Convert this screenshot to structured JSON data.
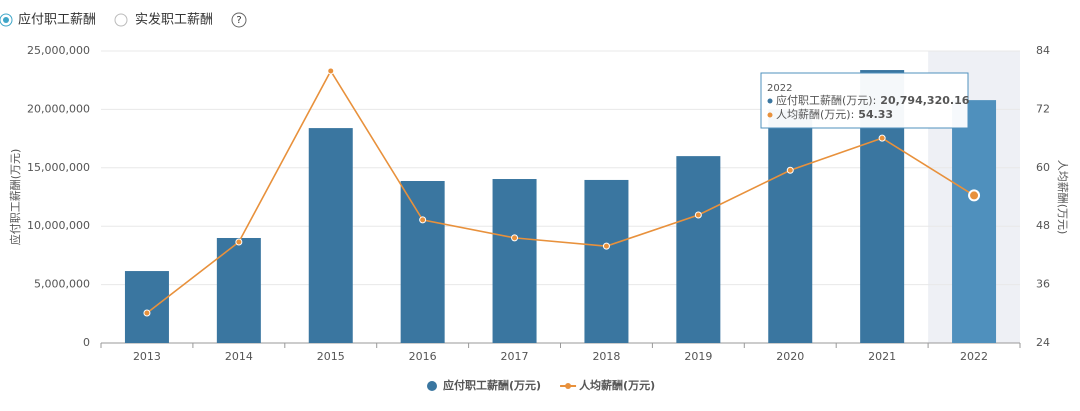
{
  "controls": {
    "options": [
      "应付职工薪酬",
      "实发职工薪酬"
    ],
    "selected": 0,
    "help_icon": "?"
  },
  "chart_data": {
    "type": "bar",
    "categories": [
      "2013",
      "2014",
      "2015",
      "2016",
      "2017",
      "2018",
      "2019",
      "2020",
      "2021",
      "2022"
    ],
    "series": [
      {
        "name": "应付职工薪酬(万元)",
        "type": "bar",
        "color": "#3a76a0",
        "highlight_color": "#4f90bd",
        "values": [
          6160000,
          8990000,
          18400000,
          13870000,
          14040000,
          13960000,
          16000000,
          20000000,
          23370000,
          20794320.16
        ],
        "value_labels": [
          null,
          null,
          null,
          null,
          null,
          null,
          null,
          null,
          null,
          "20,794,320.16"
        ]
      },
      {
        "name": "人均薪酬(万元)",
        "type": "line",
        "color": "#e8913c",
        "axis": "y2",
        "values": [
          30.16,
          44.75,
          79.9,
          49.3,
          45.6,
          43.9,
          50.3,
          59.5,
          66.1,
          54.33
        ]
      }
    ],
    "y_label": "应付职工薪酬(万元)",
    "y2_label": "人均薪酬(万元)",
    "ylim": [
      0,
      25000000
    ],
    "yticks": [
      0,
      {
        "value": 5000000,
        "label": "5,000,000"
      },
      {
        "value": 10000000,
        "label": "10,000,000"
      },
      {
        "value": 15000000,
        "label": "15,000,000"
      },
      {
        "value": 20000000,
        "label": "20,000,000"
      },
      {
        "value": 25000000,
        "label": "25,000,000"
      }
    ],
    "y2lim": [
      24,
      84
    ],
    "y2ticks": [
      24,
      36,
      48,
      60,
      72,
      84
    ],
    "grid": true,
    "legend": "bottom",
    "highlight_index": 9,
    "tooltip": {
      "labels": [
        "应付职工薪酬(万元):",
        "人均薪酬(万元):"
      ]
    }
  }
}
